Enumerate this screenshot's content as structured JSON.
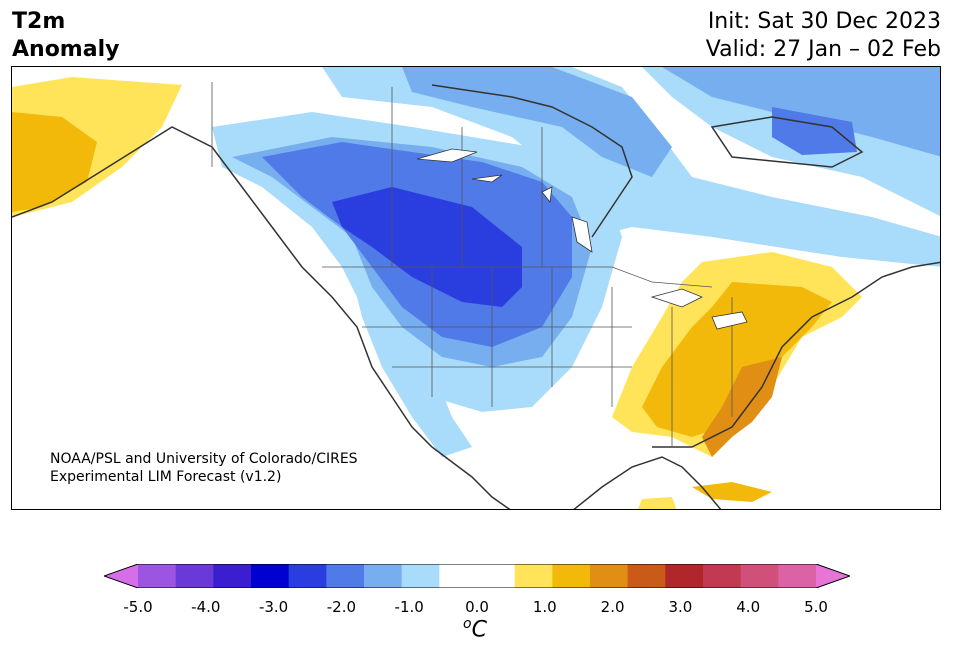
{
  "header": {
    "title_line1": "T2m",
    "title_line2": "Anomaly",
    "init": "Init: Sat 30 Dec 2023",
    "valid": "Valid: 27 Jan – 02 Feb"
  },
  "credit": {
    "line1": "NOAA/PSL and University of Colorado/CIRES",
    "line2": "Experimental LIM Forecast (v1.2)"
  },
  "colorbar": {
    "colors": [
      "#d66ee8",
      "#9b55e0",
      "#6a3ad8",
      "#3a1ed0",
      "#0000d0",
      "#2a3ee0",
      "#4f7ae8",
      "#77aef0",
      "#a9dcfa",
      "#ffffff",
      "#ffffff",
      "#ffe45a",
      "#f2b90a",
      "#e08f14",
      "#c95a18",
      "#b0262a",
      "#c23a52",
      "#d0507a",
      "#dc62a6",
      "#e775d8"
    ],
    "tick_labels": [
      "-5.0",
      "-4.0",
      "-3.0",
      "-2.0",
      "-1.0",
      "0.0",
      "1.0",
      "2.0",
      "3.0",
      "4.0",
      "5.0"
    ],
    "unit_base": "C",
    "unit_sup": "o"
  },
  "map": {
    "region": "North America",
    "land_color": "#ffffff",
    "coast_color": "#333333",
    "anomaly_regions": [
      {
        "area": "Alaska",
        "level": "warm",
        "color": "#f2b90a"
      },
      {
        "area": "Northern Great Plains / Canadian Prairies",
        "level": "strong cold",
        "color": "#2a3ee0"
      },
      {
        "area": "Western Canada and US West",
        "level": "cold",
        "color": "#77aef0"
      },
      {
        "area": "Eastern Canada / Quebec",
        "level": "cold",
        "color": "#4f7ae8"
      },
      {
        "area": "Eastern United States",
        "level": "warm",
        "color": "#f2b90a"
      },
      {
        "area": "Southeast coast",
        "level": "strong warm",
        "color": "#e08f14"
      }
    ]
  }
}
